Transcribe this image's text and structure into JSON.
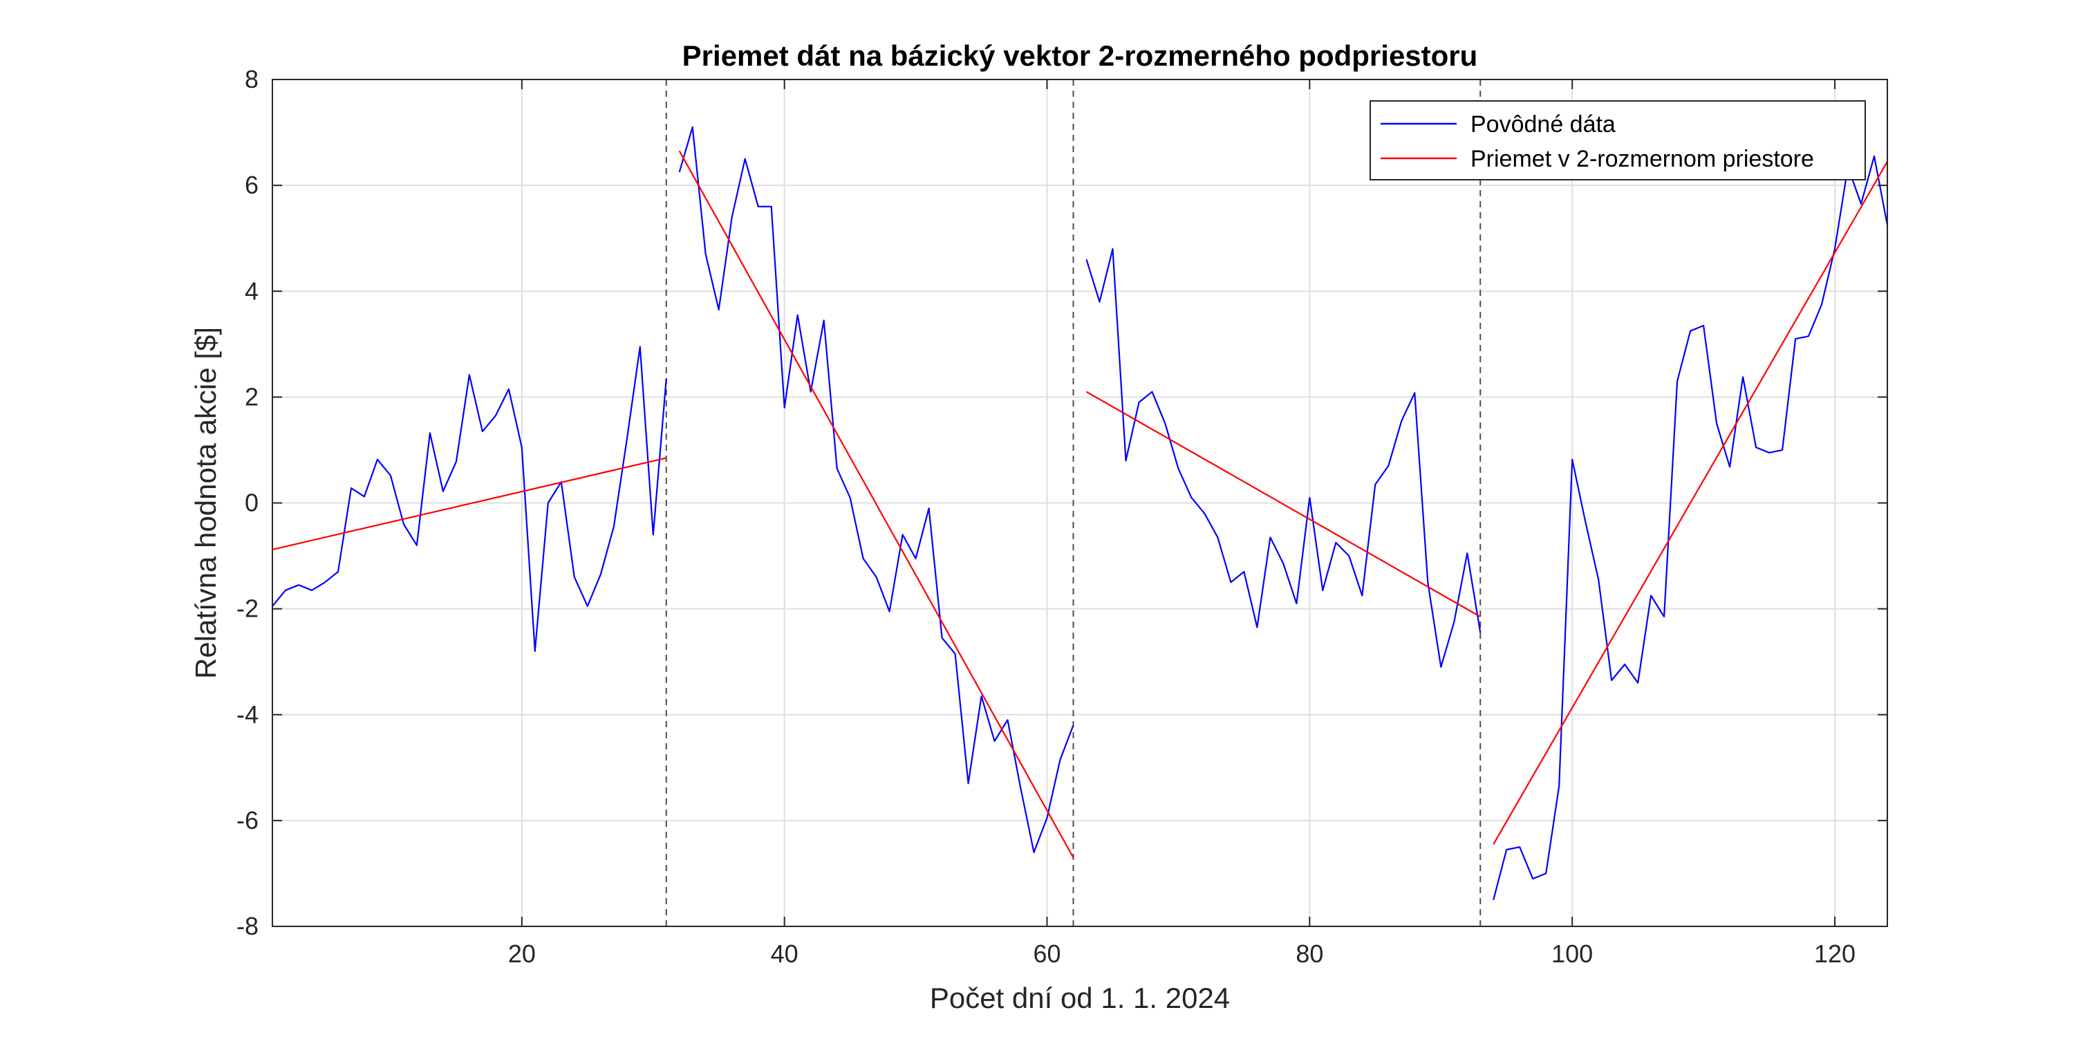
{
  "chart_data": {
    "type": "line",
    "title": "Priemet dát na bázický vektor 2-rozmerného podpriestoru",
    "xlabel": "Počet dní od 1. 1. 2024",
    "ylabel": "Relatívna hodnota akcie [$]",
    "xlim": [
      1,
      124
    ],
    "ylim": [
      -8,
      8
    ],
    "xticks": [
      20,
      40,
      60,
      80,
      100,
      120
    ],
    "yticks": [
      -8,
      -6,
      -4,
      -2,
      0,
      2,
      4,
      6,
      8
    ],
    "grid": true,
    "legend_position": "top-right",
    "segment_boundaries": [
      31,
      62,
      93
    ],
    "series": [
      {
        "name": "Povôdné dáta",
        "color": "#0000ff",
        "segments": [
          {
            "x": [
              1,
              2,
              3,
              4,
              5,
              6,
              7,
              8,
              9,
              10,
              11,
              12,
              13,
              14,
              15,
              16,
              17,
              18,
              19,
              20,
              21,
              22,
              23,
              24,
              25,
              26,
              27,
              28,
              29,
              30,
              31
            ],
            "y": [
              -1.95,
              -1.65,
              -1.55,
              -1.65,
              -1.5,
              -1.3,
              0.28,
              0.12,
              0.82,
              0.52,
              -0.4,
              -0.8,
              1.32,
              0.22,
              0.78,
              2.42,
              1.35,
              1.65,
              2.15,
              1.05,
              -2.8,
              0.0,
              0.4,
              -1.4,
              -1.95,
              -1.35,
              -0.45,
              1.2,
              2.95,
              -0.6,
              2.35
            ]
          },
          {
            "x": [
              32,
              33,
              34,
              35,
              36,
              37,
              38,
              39,
              40,
              41,
              42,
              43,
              44,
              45,
              46,
              47,
              48,
              49,
              50,
              51,
              52,
              53,
              54,
              55,
              56,
              57,
              58,
              59,
              60,
              61,
              62
            ],
            "y": [
              6.25,
              7.1,
              4.7,
              3.65,
              5.4,
              6.5,
              5.6,
              5.6,
              1.8,
              3.55,
              2.1,
              3.45,
              0.65,
              0.1,
              -1.05,
              -1.4,
              -2.05,
              -0.6,
              -1.05,
              -0.1,
              -2.55,
              -2.85,
              -5.3,
              -3.65,
              -4.5,
              -4.1,
              -5.4,
              -6.6,
              -5.95,
              -4.85,
              -4.2
            ]
          },
          {
            "x": [
              63,
              64,
              65,
              66,
              67,
              68,
              69,
              70,
              71,
              72,
              73,
              74,
              75,
              76,
              77,
              78,
              79,
              80,
              81,
              82,
              83,
              84,
              85,
              86,
              87,
              88,
              89,
              90,
              91,
              92,
              93
            ],
            "y": [
              4.6,
              3.8,
              4.8,
              0.8,
              1.9,
              2.1,
              1.5,
              0.65,
              0.1,
              -0.2,
              -0.65,
              -1.5,
              -1.3,
              -2.35,
              -0.65,
              -1.15,
              -1.9,
              0.1,
              -1.65,
              -0.75,
              -1.0,
              -1.75,
              0.35,
              0.7,
              1.55,
              2.08,
              -1.5,
              -3.1,
              -2.25,
              -0.95,
              -2.45
            ]
          },
          {
            "x": [
              94,
              95,
              96,
              97,
              98,
              99,
              100,
              101,
              102,
              103,
              104,
              105,
              106,
              107,
              108,
              109,
              110,
              111,
              112,
              113,
              114,
              115,
              116,
              117,
              118,
              119,
              120,
              121,
              122,
              123,
              124
            ],
            "y": [
              -7.5,
              -6.55,
              -6.5,
              -7.1,
              -7.0,
              -5.35,
              0.82,
              -0.35,
              -1.45,
              -3.35,
              -3.05,
              -3.4,
              -1.75,
              -2.15,
              2.3,
              3.25,
              3.35,
              1.5,
              0.68,
              2.38,
              1.05,
              0.95,
              1.0,
              3.1,
              3.15,
              3.75,
              4.8,
              6.35,
              5.65,
              6.55,
              5.25
            ]
          }
        ]
      },
      {
        "name": "Priemet v 2-rozmernom priestore",
        "color": "#ff0000",
        "segments": [
          {
            "x": [
              1,
              31
            ],
            "y": [
              -0.88,
              0.85
            ]
          },
          {
            "x": [
              32,
              62
            ],
            "y": [
              6.65,
              -6.7
            ]
          },
          {
            "x": [
              63,
              93
            ],
            "y": [
              2.1,
              -2.15
            ]
          },
          {
            "x": [
              94,
              124
            ],
            "y": [
              -6.45,
              6.45
            ]
          }
        ]
      }
    ]
  }
}
